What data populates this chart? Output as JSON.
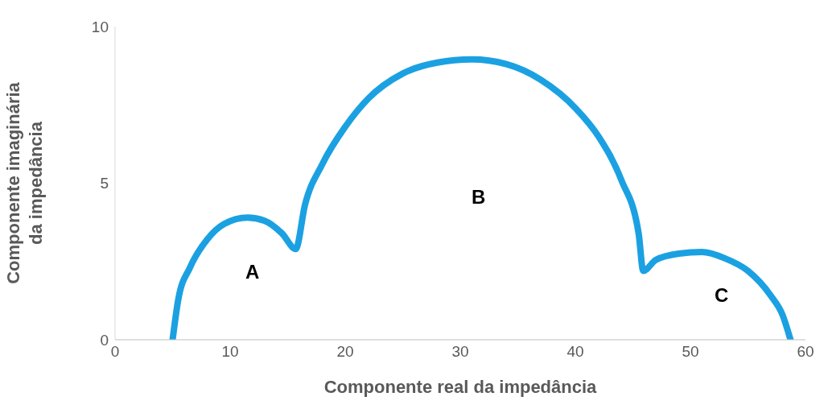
{
  "chart_data": {
    "type": "line",
    "xlabel": "Componente real da impedância",
    "ylabel": "Componente imaginária da impedância",
    "series": [
      {
        "color": "#1ba1e2",
        "x": [
          5,
          5.5,
          6.5,
          8,
          9.5,
          11.5,
          13,
          14.5,
          15.7,
          16.5,
          18,
          20,
          22,
          25,
          28,
          31,
          34,
          37,
          40,
          42,
          44,
          45.5,
          45.9,
          47,
          49,
          51,
          53,
          55,
          57,
          58,
          58.7
        ],
        "values": [
          0,
          1.3,
          2.3,
          3.2,
          3.7,
          3.9,
          3.8,
          3.4,
          2.9,
          4.3,
          5.6,
          6.8,
          7.7,
          8.5,
          8.85,
          8.95,
          8.8,
          8.3,
          7.4,
          6.5,
          5.1,
          3.4,
          2.2,
          2.55,
          2.75,
          2.8,
          2.6,
          2.2,
          1.4,
          0.8,
          0
        ]
      }
    ],
    "xlim": [
      0,
      60
    ],
    "xticks": [
      0,
      10,
      20,
      30,
      40,
      50,
      60
    ],
    "ylim": [
      0,
      10
    ],
    "yticks": [
      0,
      5,
      10
    ],
    "grid": false,
    "marker": "none",
    "line_style": "solid",
    "annotations": [
      "A",
      "B",
      "C"
    ]
  }
}
